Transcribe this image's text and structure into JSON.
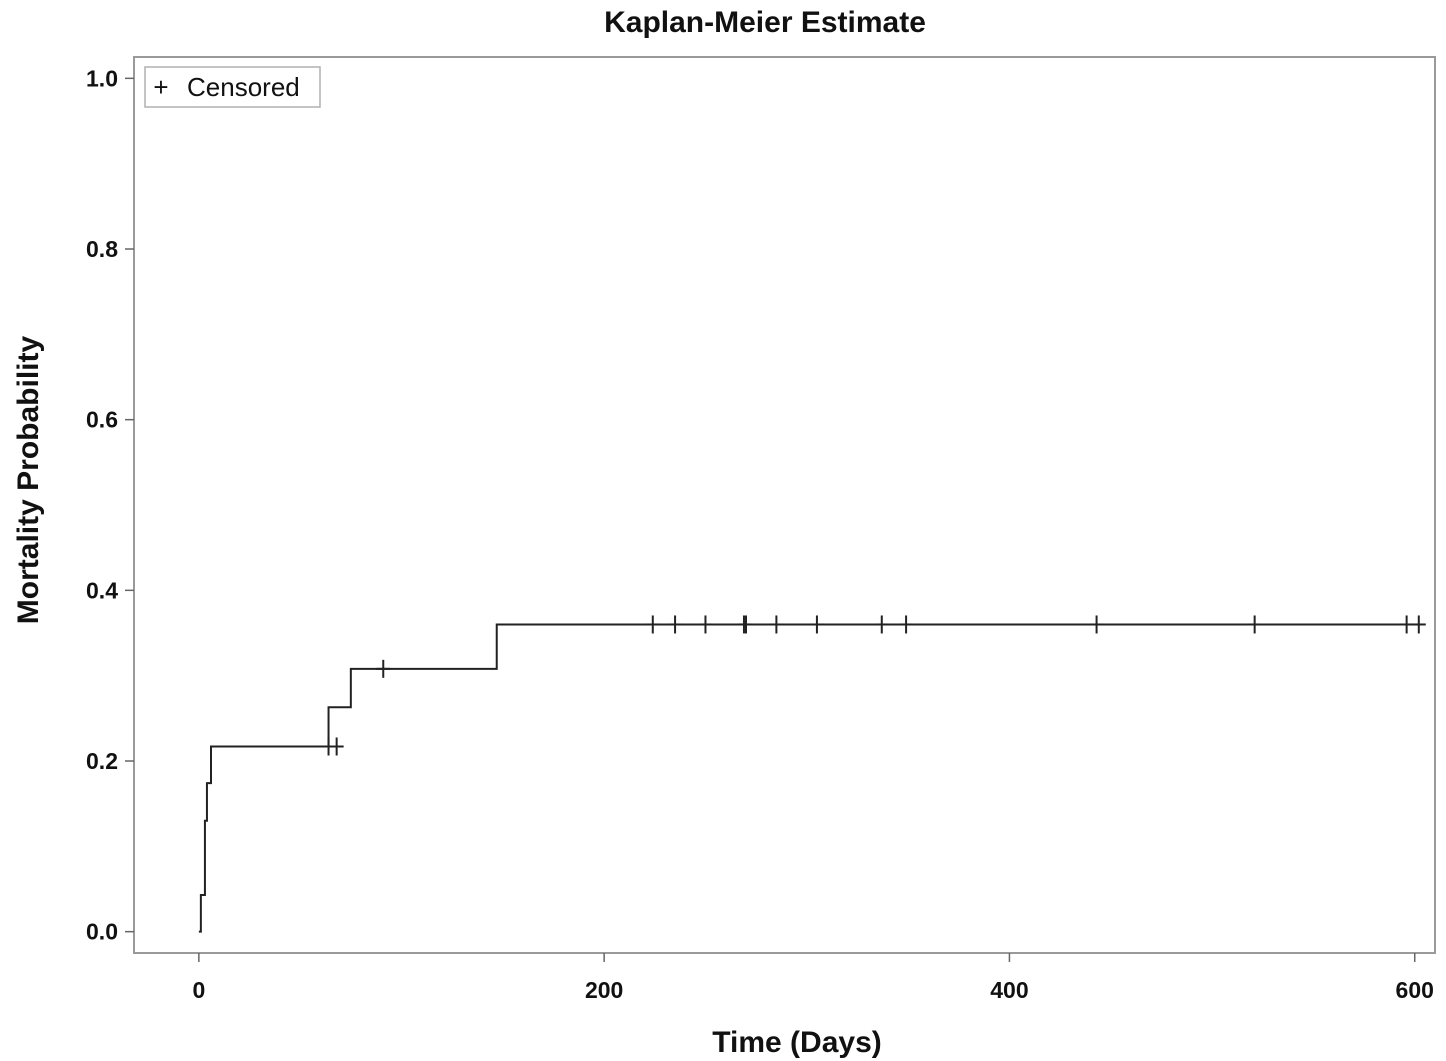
{
  "chart_data": {
    "type": "line",
    "title": "Kaplan-Meier Estimate",
    "xlabel": "Time (Days)",
    "ylabel": "Mortality Probability",
    "xlim": [
      -32,
      610
    ],
    "ylim": [
      -0.025,
      1.025
    ],
    "xticks": [
      0,
      200,
      400,
      600
    ],
    "xtick_labels": [
      "0",
      "200",
      "400",
      "600"
    ],
    "yticks": [
      0.0,
      0.2,
      0.4,
      0.6,
      0.8,
      1.0
    ],
    "ytick_labels": [
      "0.0",
      "0.2",
      "0.4",
      "0.6",
      "0.8",
      "1.0"
    ],
    "grid": false,
    "legend": {
      "position": "top-left",
      "entries": [
        {
          "symbol": "+",
          "label": "Censored"
        }
      ]
    },
    "series": [
      {
        "step_points": [
          [
            0,
            0.0
          ],
          [
            1,
            0.043
          ],
          [
            3,
            0.13
          ],
          [
            4,
            0.174
          ],
          [
            6,
            0.217
          ],
          [
            64,
            0.263
          ],
          [
            75,
            0.308
          ],
          [
            147,
            0.36
          ],
          [
            603,
            0.36
          ]
        ],
        "censored": [
          [
            64,
            0.217
          ],
          [
            68,
            0.217
          ],
          [
            91,
            0.308
          ],
          [
            224,
            0.36
          ],
          [
            235,
            0.36
          ],
          [
            250,
            0.36
          ],
          [
            269,
            0.36
          ],
          [
            270,
            0.36
          ],
          [
            285,
            0.36
          ],
          [
            305,
            0.36
          ],
          [
            337,
            0.36
          ],
          [
            349,
            0.36
          ],
          [
            443,
            0.36
          ],
          [
            521,
            0.36
          ],
          [
            596,
            0.36
          ],
          [
            602,
            0.36
          ]
        ]
      }
    ]
  }
}
